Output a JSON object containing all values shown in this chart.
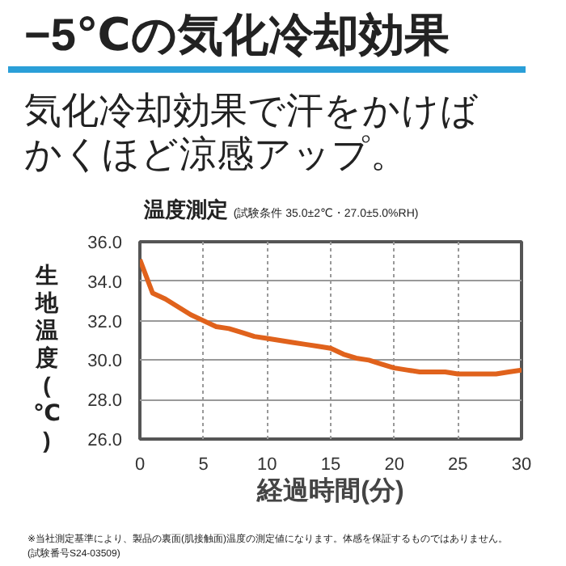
{
  "chart_data": {
    "type": "line",
    "title": "−5℃の気化冷却効果",
    "subtitle": "気化冷却効果で汗をかけばかくほど涼感アップ。",
    "annotations": [
      "温度測定",
      "(試験条件 35.0±2℃・27.0±5.0%RH)",
      "※当社測定基準により、製品の裏面(肌接触面)温度の測定値になります。体感を保証するものではありません。",
      "(試験番号S24-03509)"
    ],
    "xlabel": "経過時間(分)",
    "ylabel": "生地温度(℃)",
    "x": [
      0,
      1,
      2,
      3,
      4,
      5,
      6,
      7,
      8,
      9,
      10,
      11,
      12,
      13,
      14,
      15,
      16,
      17,
      18,
      19,
      20,
      21,
      22,
      23,
      24,
      25,
      26,
      27,
      28,
      29,
      30
    ],
    "series": [
      {
        "color": "#e0621c",
        "values": [
          35.1,
          33.4,
          33.1,
          32.7,
          32.3,
          32.0,
          31.7,
          31.6,
          31.4,
          31.2,
          31.1,
          31.0,
          30.9,
          30.8,
          30.7,
          30.6,
          30.3,
          30.1,
          30.0,
          29.8,
          29.6,
          29.5,
          29.4,
          29.4,
          29.4,
          29.3,
          29.3,
          29.3,
          29.3,
          29.4,
          29.5
        ]
      }
    ],
    "xlim": [
      0,
      30
    ],
    "xticks": [
      0,
      5,
      10,
      15,
      20,
      25,
      30
    ],
    "ylim": [
      26,
      36
    ],
    "yticks": [
      {
        "value": 26,
        "label": "26.0"
      },
      {
        "value": 28,
        "label": "28.0"
      },
      {
        "value": 30,
        "label": "30.0"
      },
      {
        "value": 32,
        "label": "32.0"
      },
      {
        "value": 34,
        "label": "34.0"
      },
      {
        "value": 36,
        "label": "36.0"
      }
    ],
    "grid": true,
    "marker": "none",
    "line_style": "solid"
  }
}
